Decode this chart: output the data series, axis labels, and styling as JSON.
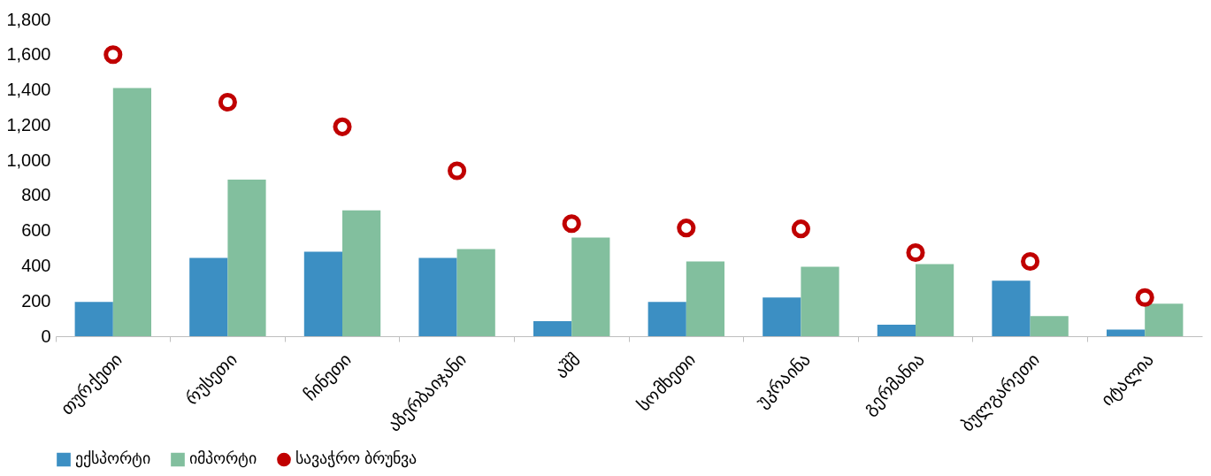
{
  "chart_data": {
    "type": "bar",
    "categories": [
      "თურქეთი",
      "რუსეთი",
      "ჩინეთი",
      "აზერბაიჯანი",
      "აშშ",
      "სომხეთი",
      "უკრაინა",
      "გერმანია",
      "ბულგარეთი",
      "იტალია"
    ],
    "series": [
      {
        "name": "ექსპორტი",
        "color": "#3c8fc3",
        "values": [
          195,
          445,
          480,
          445,
          85,
          195,
          220,
          65,
          315,
          38
        ]
      },
      {
        "name": "იმპორტი",
        "color": "#82bf9e",
        "values": [
          1410,
          890,
          715,
          495,
          560,
          425,
          395,
          410,
          115,
          185
        ]
      },
      {
        "name": "სავაჭრო ბრუნვა",
        "type": "scatter",
        "color": "#c00000",
        "values": [
          1600,
          1330,
          1190,
          940,
          640,
          615,
          610,
          475,
          425,
          220
        ]
      }
    ],
    "ylim": [
      0,
      1800
    ],
    "yticks": [
      0,
      200,
      400,
      600,
      800,
      {
        "value": 1000,
        "label": "1,000"
      },
      {
        "value": 1200,
        "label": "1,200"
      },
      {
        "value": 1400,
        "label": "1,400"
      },
      {
        "value": 1600,
        "label": "1,600"
      },
      {
        "value": 1800,
        "label": "1,800"
      }
    ],
    "grid": false,
    "legend": "bottom",
    "marker": "circle"
  }
}
